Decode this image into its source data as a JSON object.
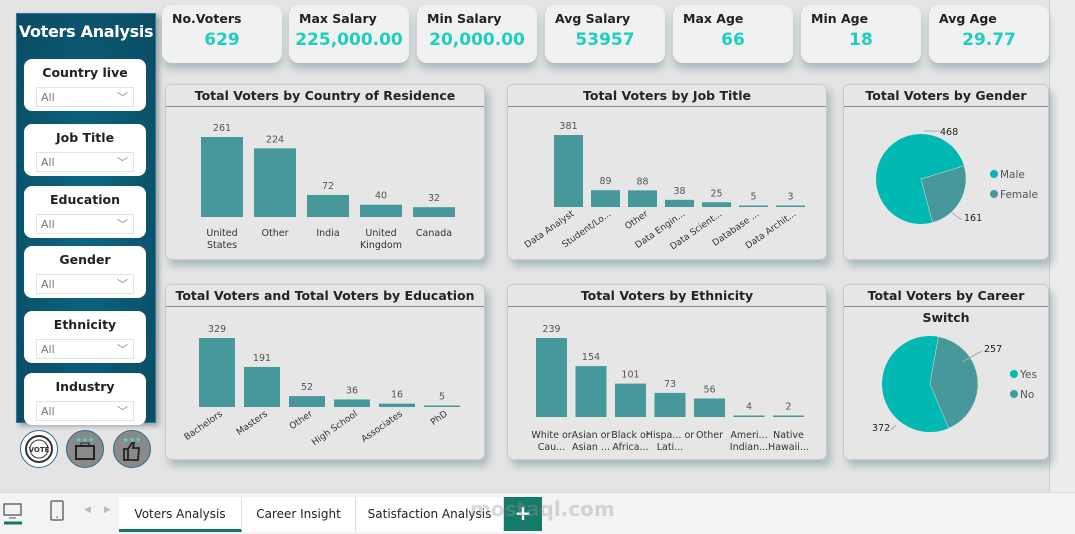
{
  "sidebar": {
    "title": "Voters Analysis",
    "slicers": [
      {
        "label": "Country live",
        "value": "All"
      },
      {
        "label": "Job Title",
        "value": "All"
      },
      {
        "label": "Education",
        "value": "All"
      },
      {
        "label": "Gender",
        "value": "All"
      },
      {
        "label": "Ethnicity",
        "value": "All"
      },
      {
        "label": "Industry",
        "value": "All"
      }
    ],
    "nav_icons": [
      "vote-badge-icon",
      "briefcase-icon",
      "thumbs-up-icon"
    ]
  },
  "kpis": [
    {
      "title": "No.Voters",
      "value": "629"
    },
    {
      "title": "Max Salary",
      "value": "225,000.00"
    },
    {
      "title": "Min Salary",
      "value": "20,000.00"
    },
    {
      "title": "Avg Salary",
      "value": "53957"
    },
    {
      "title": "Max Age",
      "value": "66"
    },
    {
      "title": "Min Age",
      "value": "18"
    },
    {
      "title": "Avg Age",
      "value": "29.77"
    }
  ],
  "colors": {
    "bar": "#47989a",
    "pie_primary": "#01b8b3",
    "pie_secondary": "#47989a",
    "kpi_value": "#1ccfc0",
    "sidebar": "#0a536b",
    "active_tab": "#117865"
  },
  "chart_data": [
    {
      "type": "bar",
      "title": "Total Voters by Country of Residence",
      "categories": [
        "United States",
        "Other",
        "India",
        "United Kingdom",
        "Canada"
      ],
      "values": [
        261,
        224,
        72,
        40,
        32
      ]
    },
    {
      "type": "bar",
      "title": "Total Voters by Job Title",
      "categories": [
        "Data Analyst",
        "Student/Lo...",
        "Other",
        "Data Engin...",
        "Data Scient...",
        "Database ...",
        "Data Archit..."
      ],
      "values": [
        381,
        89,
        88,
        38,
        25,
        5,
        3
      ]
    },
    {
      "type": "pie",
      "title": "Total Voters by Gender",
      "categories": [
        "Male",
        "Female"
      ],
      "values": [
        468,
        161
      ],
      "legend": "right"
    },
    {
      "type": "bar",
      "title": "Total Voters and Total Voters by Education",
      "categories": [
        "Bachelors",
        "Masters",
        "Other",
        "High School",
        "Associates",
        "PhD"
      ],
      "values": [
        329,
        191,
        52,
        36,
        16,
        5
      ]
    },
    {
      "type": "bar",
      "title": "Total Voters by Ethnicity",
      "categories": [
        "White or Cau...",
        "Asian or Asian ...",
        "Black or Africa...",
        "Hispa... or Lati...",
        "Other",
        "Ameri... Indian...",
        "Native Hawaii..."
      ],
      "values": [
        239,
        154,
        101,
        73,
        56,
        4,
        2
      ]
    },
    {
      "type": "pie",
      "title": "Total Voters by Career Switch",
      "categories": [
        "Yes",
        "No"
      ],
      "values": [
        372,
        257
      ],
      "legend": "right"
    }
  ],
  "tabs": [
    {
      "label": "Voters Analysis",
      "active": true
    },
    {
      "label": "Career Insight"
    },
    {
      "label": "Satisfaction Analysis"
    }
  ],
  "add_page": "+",
  "watermark": "mostaql.com"
}
